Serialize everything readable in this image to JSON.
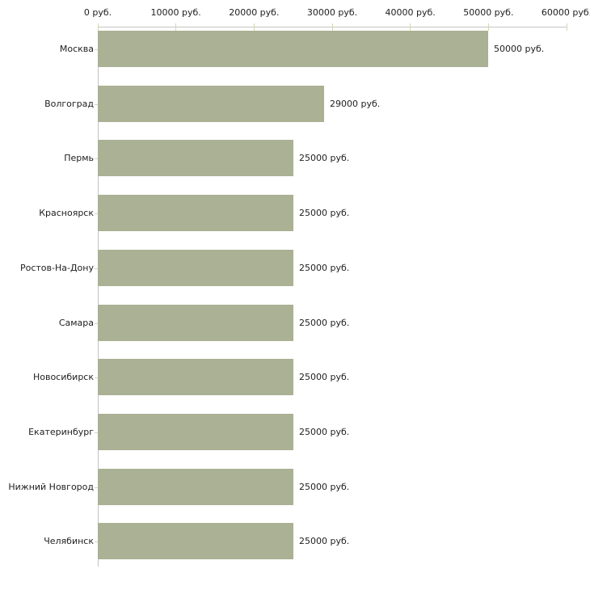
{
  "chart_data": {
    "type": "bar",
    "orientation": "horizontal",
    "title": "",
    "xlabel": "",
    "ylabel": "",
    "categories": [
      "Москва",
      "Волгоград",
      "Пермь",
      "Красноярск",
      "Ростов-На-Дону",
      "Самара",
      "Новосибирск",
      "Екатеринбург",
      "Нижний Новгород",
      "Челябинск"
    ],
    "values": [
      50000,
      29000,
      25000,
      25000,
      25000,
      25000,
      25000,
      25000,
      25000,
      25000
    ],
    "value_labels": [
      "50000 руб.",
      "29000 руб.",
      "25000 руб.",
      "25000 руб.",
      "25000 руб.",
      "25000 руб.",
      "25000 руб.",
      "25000 руб.",
      "25000 руб.",
      "25000 руб."
    ],
    "unit": "руб.",
    "xlim": [
      0,
      60000
    ],
    "x_ticks": [
      0,
      10000,
      20000,
      30000,
      40000,
      50000,
      60000
    ],
    "x_tick_labels": [
      "0 руб.",
      "10000 руб.",
      "20000 руб.",
      "30000 руб.",
      "40000 руб.",
      "50000 руб.",
      "60000 руб."
    ],
    "grid": false,
    "legend": "none",
    "bar_color": "#aab194",
    "axis_line_color": "#c4c4c4",
    "tick_mark_color": "#d6d7b2",
    "text_color": "#212121",
    "background_color": "#ffffff"
  }
}
